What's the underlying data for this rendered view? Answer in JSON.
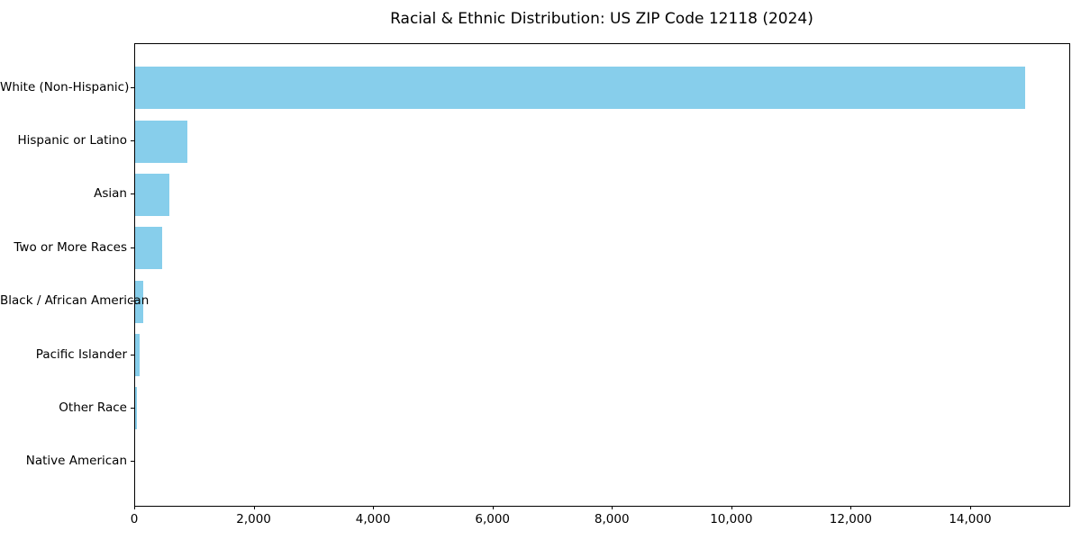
{
  "chart_data": {
    "type": "bar",
    "orientation": "horizontal",
    "title": "Racial & Ethnic Distribution: US ZIP Code 12118 (2024)",
    "categories": [
      "White (Non-Hispanic)",
      "Hispanic or Latino",
      "Asian",
      "Two or More Races",
      "Black / African American",
      "Pacific Islander",
      "Other Race",
      "Native American"
    ],
    "values": [
      14900,
      870,
      580,
      460,
      140,
      75,
      35,
      0
    ],
    "xlabel": "",
    "ylabel": "",
    "xlim": [
      0,
      15645
    ],
    "x_ticks": [
      0,
      2000,
      4000,
      6000,
      8000,
      10000,
      12000,
      14000
    ],
    "x_tick_labels": [
      "0",
      "2,000",
      "4,000",
      "6,000",
      "8,000",
      "10,000",
      "12,000",
      "14,000"
    ],
    "bar_color": "#87CEEB",
    "grid": false,
    "legend": null
  }
}
